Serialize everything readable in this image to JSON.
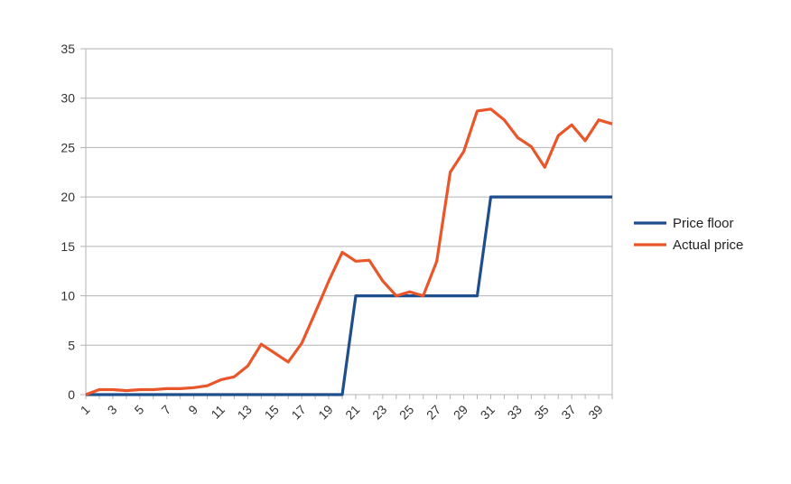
{
  "chart_data": {
    "type": "line",
    "title": "",
    "xlabel": "",
    "ylabel": "",
    "x": [
      1,
      2,
      3,
      4,
      5,
      6,
      7,
      8,
      9,
      10,
      11,
      12,
      13,
      14,
      15,
      16,
      17,
      18,
      19,
      20,
      21,
      22,
      23,
      24,
      25,
      26,
      27,
      28,
      29,
      30,
      31,
      32,
      33,
      34,
      35,
      36,
      37,
      38,
      39,
      40
    ],
    "x_tick_labels": [
      "1",
      "3",
      "5",
      "7",
      "9",
      "11",
      "13",
      "15",
      "17",
      "19",
      "21",
      "23",
      "25",
      "27",
      "29",
      "31",
      "33",
      "35",
      "37",
      "39"
    ],
    "ylim": [
      0,
      35
    ],
    "y_tick_labels": [
      "0",
      "5",
      "10",
      "15",
      "20",
      "25",
      "30",
      "35"
    ],
    "grid": true,
    "legend_position": "right",
    "series": [
      {
        "name": "Price floor",
        "color": "#1f4e8c",
        "values": [
          0,
          0,
          0,
          0,
          0,
          0,
          0,
          0,
          0,
          0,
          0,
          0,
          0,
          0,
          0,
          0,
          0,
          0,
          0,
          0,
          10,
          10,
          10,
          10,
          10,
          10,
          10,
          10,
          10,
          10,
          20,
          20,
          20,
          20,
          20,
          20,
          20,
          20,
          20,
          20
        ]
      },
      {
        "name": "Actual price",
        "color": "#e8562a",
        "values": [
          0,
          0.5,
          0.5,
          0.4,
          0.5,
          0.5,
          0.6,
          0.6,
          0.7,
          0.9,
          1.5,
          1.8,
          2.9,
          5.1,
          4.2,
          3.3,
          5.2,
          8.3,
          11.5,
          14.4,
          13.5,
          13.6,
          11.5,
          10.0,
          10.4,
          10.0,
          13.5,
          22.5,
          24.6,
          28.7,
          28.9,
          27.8,
          26.0,
          25.1,
          23.0,
          26.2,
          27.3,
          25.7,
          27.8,
          27.4
        ]
      }
    ]
  }
}
